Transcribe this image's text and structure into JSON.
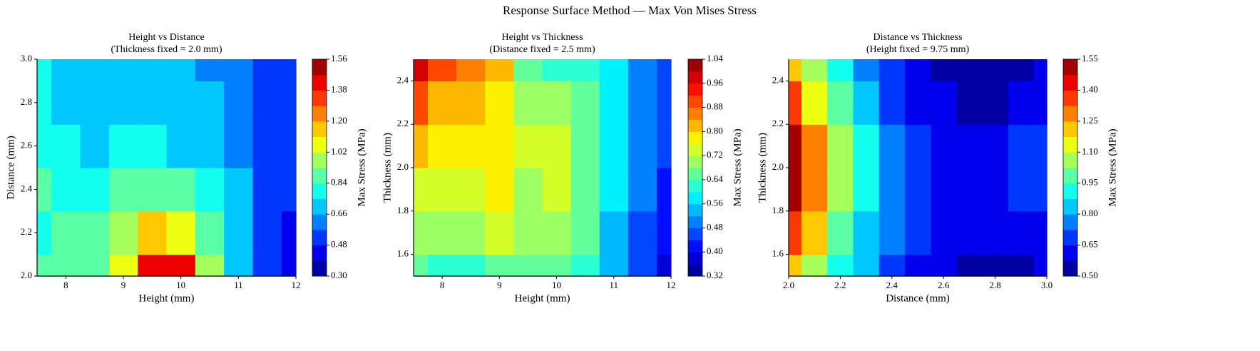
{
  "title": "Response Surface Method — Max Von Mises Stress",
  "chart_data": [
    {
      "type": "contour",
      "title": "Height vs Distance",
      "subtitle": "(Thickness fixed = 2.0 mm)",
      "x_label": "Height (mm)",
      "y_label": "Distance (mm)",
      "colorbar_label": "Max Stress (MPa)",
      "xlim": [
        7.5,
        12
      ],
      "ylim": [
        2,
        3
      ],
      "xticks": [
        8,
        9,
        10,
        11,
        12
      ],
      "yticks": [
        {
          "value": 2,
          "label": "2.0"
        },
        2.2,
        2.4,
        2.6,
        2.8,
        {
          "value": 3,
          "label": "3.0"
        }
      ],
      "clim": [
        0.3,
        1.56
      ],
      "cticks": [
        {
          "value": 0.3,
          "label": "0.30"
        },
        0.48,
        0.66,
        0.84,
        1.02,
        {
          "value": 1.2,
          "label": "1.20"
        },
        1.38,
        1.56
      ],
      "x": [
        7.5,
        8,
        8.5,
        9,
        9.5,
        10,
        10.5,
        11,
        11.5,
        12
      ],
      "y": [
        2,
        2.2,
        2.4,
        2.6,
        2.8,
        3
      ],
      "z": [
        [
          0.84,
          0.84,
          0.9,
          1.1,
          1.45,
          1.4,
          1.0,
          0.7,
          0.5,
          0.4
        ],
        [
          0.8,
          0.84,
          0.88,
          1.0,
          1.15,
          1.1,
          0.9,
          0.66,
          0.5,
          0.45
        ],
        [
          0.84,
          0.8,
          0.8,
          0.88,
          0.92,
          0.88,
          0.8,
          0.66,
          0.55,
          0.5
        ],
        [
          0.8,
          0.75,
          0.72,
          0.75,
          0.78,
          0.72,
          0.7,
          0.62,
          0.56,
          0.52
        ],
        [
          0.76,
          0.7,
          0.66,
          0.7,
          0.72,
          0.68,
          0.66,
          0.6,
          0.56,
          0.52
        ],
        [
          0.76,
          0.68,
          0.66,
          0.7,
          0.74,
          0.68,
          0.64,
          0.58,
          0.56,
          0.52
        ]
      ]
    },
    {
      "type": "contour",
      "title": "Height vs Thickness",
      "subtitle": "(Distance fixed = 2.5 mm)",
      "x_label": "Height (mm)",
      "y_label": "Thickness (mm)",
      "colorbar_label": "Max Stress (MPa)",
      "xlim": [
        7.5,
        12
      ],
      "ylim": [
        1.5,
        2.5
      ],
      "xticks": [
        8,
        9,
        10,
        11,
        12
      ],
      "yticks": [
        1.6,
        1.8,
        {
          "value": 2,
          "label": "2.0"
        },
        2.2,
        2.4
      ],
      "clim": [
        0.32,
        1.04
      ],
      "cticks": [
        0.32,
        {
          "value": 0.4,
          "label": "0.40"
        },
        0.48,
        0.56,
        0.64,
        0.72,
        {
          "value": 0.8,
          "label": "0.80"
        },
        0.88,
        0.96,
        1.04
      ],
      "x": [
        7.5,
        8,
        8.5,
        9,
        9.5,
        10,
        10.5,
        11,
        11.5,
        12
      ],
      "y": [
        1.5,
        1.7,
        1.9,
        2.1,
        2.3,
        2.5
      ],
      "z": [
        [
          0.66,
          0.62,
          0.62,
          0.66,
          0.64,
          0.64,
          0.6,
          0.52,
          0.44,
          0.38
        ],
        [
          0.7,
          0.68,
          0.7,
          0.72,
          0.68,
          0.7,
          0.64,
          0.54,
          0.46,
          0.4
        ],
        [
          0.74,
          0.72,
          0.74,
          0.76,
          0.7,
          0.72,
          0.66,
          0.56,
          0.48,
          0.42
        ],
        [
          0.8,
          0.76,
          0.76,
          0.78,
          0.72,
          0.72,
          0.66,
          0.58,
          0.5,
          0.44
        ],
        [
          0.9,
          0.82,
          0.8,
          0.78,
          0.7,
          0.68,
          0.64,
          0.58,
          0.5,
          0.44
        ],
        [
          0.98,
          0.9,
          0.84,
          0.82,
          0.64,
          0.62,
          0.62,
          0.58,
          0.5,
          0.44
        ]
      ]
    },
    {
      "type": "contour",
      "title": "Distance vs Thickness",
      "subtitle": "(Height fixed = 9.75 mm)",
      "x_label": "Distance (mm)",
      "y_label": "Thickness (mm)",
      "colorbar_label": "Max Stress (MPa)",
      "xlim": [
        2,
        3
      ],
      "ylim": [
        1.5,
        2.5
      ],
      "xticks": [
        {
          "value": 2,
          "label": "2.0"
        },
        2.2,
        2.4,
        2.6,
        2.8,
        {
          "value": 3,
          "label": "3.0"
        }
      ],
      "yticks": [
        1.6,
        1.8,
        {
          "value": 2,
          "label": "2.0"
        },
        2.2,
        2.4
      ],
      "clim": [
        0.5,
        1.55
      ],
      "cticks": [
        {
          "value": 0.5,
          "label": "0.50"
        },
        0.65,
        {
          "value": 0.8,
          "label": "0.80"
        },
        0.95,
        {
          "value": 1.1,
          "label": "1.10"
        },
        1.25,
        {
          "value": 1.4,
          "label": "1.40"
        },
        1.55
      ],
      "x": [
        2,
        2.1,
        2.2,
        2.3,
        2.4,
        2.5,
        2.6,
        2.7,
        2.8,
        2.9,
        3
      ],
      "y": [
        1.5,
        1.7,
        1.9,
        2.1,
        2.3,
        2.5
      ],
      "z": [
        [
          1.2,
          1.05,
          0.92,
          0.8,
          0.7,
          0.62,
          0.58,
          0.56,
          0.56,
          0.57,
          0.58
        ],
        [
          1.35,
          1.18,
          1.0,
          0.85,
          0.73,
          0.65,
          0.62,
          0.6,
          0.6,
          0.62,
          0.64
        ],
        [
          1.52,
          1.3,
          1.08,
          0.9,
          0.76,
          0.67,
          0.64,
          0.63,
          0.64,
          0.68,
          0.72
        ],
        [
          1.5,
          1.28,
          1.08,
          0.9,
          0.76,
          0.67,
          0.63,
          0.62,
          0.63,
          0.67,
          0.72
        ],
        [
          1.35,
          1.16,
          1.0,
          0.85,
          0.72,
          0.63,
          0.58,
          0.56,
          0.57,
          0.6,
          0.63
        ],
        [
          1.2,
          1.04,
          0.9,
          0.78,
          0.68,
          0.6,
          0.54,
          0.51,
          0.52,
          0.55,
          0.58
        ]
      ]
    }
  ]
}
